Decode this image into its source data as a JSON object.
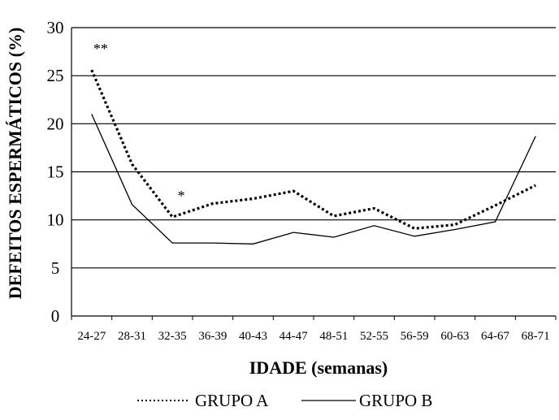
{
  "chart_data": {
    "type": "line",
    "title": "",
    "xlabel": "IDADE (semanas)",
    "ylabel": "DEFEITOS ESPERMÁTICOS (%)",
    "ylim": [
      0,
      30
    ],
    "yticks": [
      "0",
      "5",
      "10",
      "15",
      "20",
      "25",
      "30"
    ],
    "grid": "horizontal",
    "legend_position": "bottom",
    "categories": [
      "24-27",
      "28-31",
      "32-35",
      "36-39",
      "40-43",
      "44-47",
      "48-51",
      "52-55",
      "56-59",
      "60-63",
      "64-67",
      "68-71"
    ],
    "series": [
      {
        "name": "GRUPO A",
        "style": "dotted-thick",
        "values": [
          25.6,
          15.8,
          10.3,
          11.7,
          12.2,
          13.0,
          10.4,
          11.2,
          9.1,
          9.5,
          11.5,
          13.6
        ]
      },
      {
        "name": "GRUPO B",
        "style": "solid-thin",
        "values": [
          21.0,
          11.6,
          7.6,
          7.6,
          7.5,
          8.7,
          8.2,
          9.4,
          8.3,
          9.0,
          9.8,
          18.7
        ]
      }
    ],
    "annotations": [
      {
        "text": "**",
        "category": "24-27",
        "series": "GRUPO A"
      },
      {
        "text": "*",
        "category": "32-35",
        "series": "GRUPO A"
      }
    ]
  }
}
